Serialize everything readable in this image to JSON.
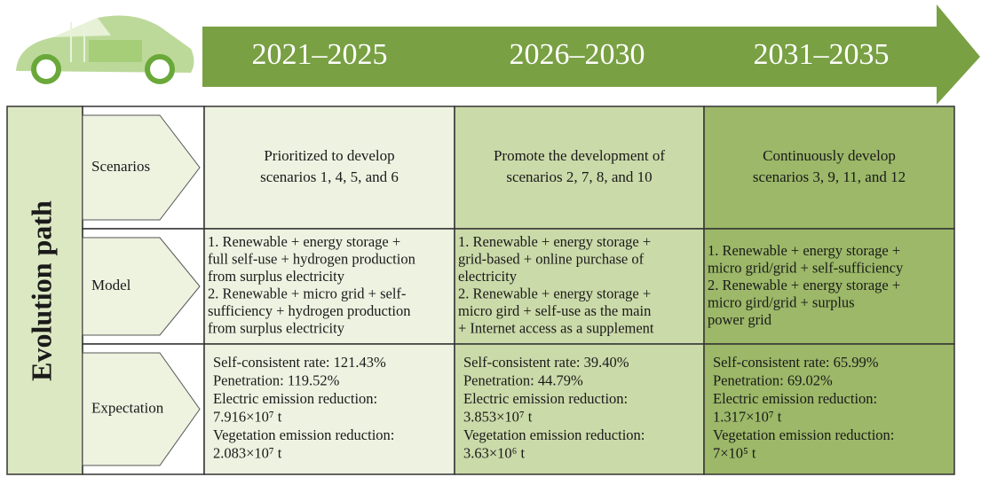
{
  "header": {
    "periods": [
      "2021–2025",
      "2026–2030",
      "2031–2035"
    ]
  },
  "side_label": "Evolution path",
  "rows": [
    {
      "label": "Scenarios",
      "cells": [
        [
          "Prioritized to develop",
          "scenarios 1, 4, 5, and 6"
        ],
        [
          "Promote the development of",
          "scenarios 2, 7, 8, and 10"
        ],
        [
          "Continuously develop",
          "scenarios 3, 9, 11, and 12"
        ]
      ]
    },
    {
      "label": "Model",
      "cells": [
        [
          "1. Renewable + energy storage +",
          "full self-use + hydrogen production",
          "from surplus electricity",
          "2. Renewable + micro grid + self-",
          "sufficiency + hydrogen production",
          "from surplus electricity"
        ],
        [
          "1. Renewable + energy storage +",
          "grid-based + online purchase of",
          "electricity",
          "2. Renewable + energy storage +",
          "micro gird + self-use as the main",
          "+ Internet access as a supplement"
        ],
        [
          "1. Renewable + energy storage +",
          "micro grid/grid + self-sufficiency",
          "2. Renewable + energy storage +",
          "micro gird/grid + surplus",
          "power grid"
        ]
      ]
    },
    {
      "label": "Expectation",
      "cells": [
        [
          "Self-consistent rate: 121.43%",
          "Penetration: 119.52%",
          "Electric emission reduction:",
          "7.916×10⁷ t",
          "Vegetation emission reduction:",
          "2.083×10⁷ t"
        ],
        [
          "Self-consistent rate: 39.40%",
          "Penetration: 44.79%",
          "Electric emission reduction:",
          "3.853×10⁷ t",
          "Vegetation emission reduction:",
          "3.63×10⁶ t"
        ],
        [
          "Self-consistent rate: 65.99%",
          "Penetration: 69.02%",
          "Electric emission reduction:",
          "1.317×10⁷ t",
          "Vegetation emission reduction:",
          "7×10⁵ t"
        ]
      ]
    }
  ]
}
